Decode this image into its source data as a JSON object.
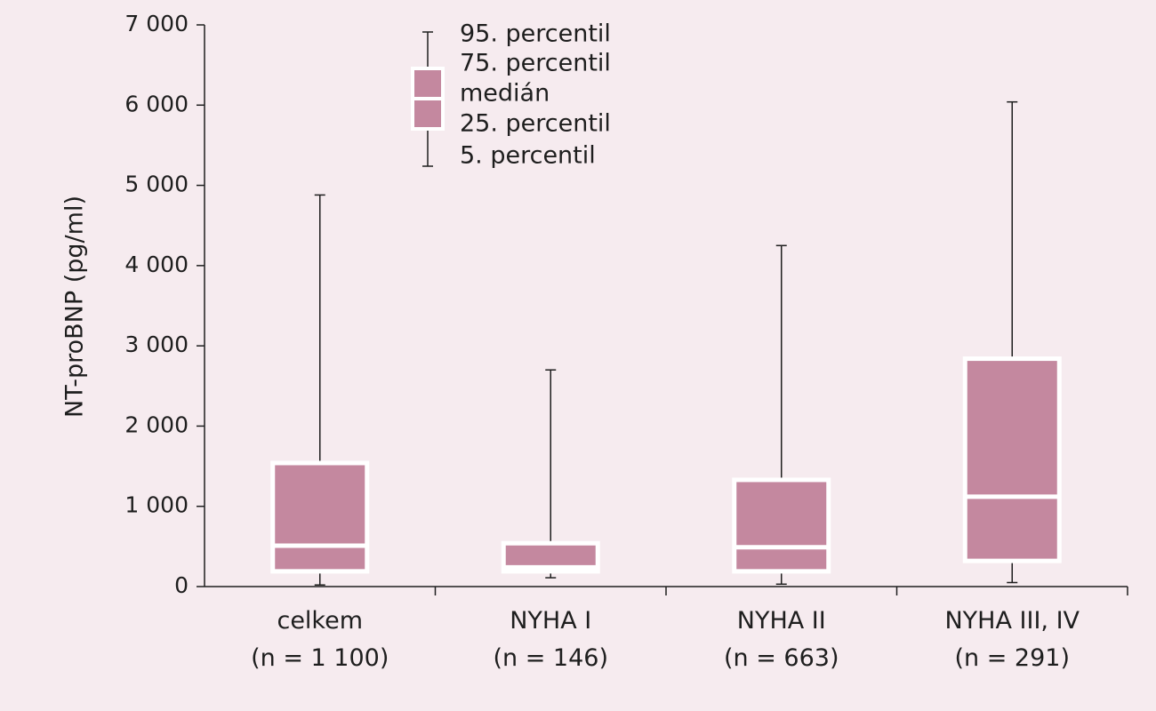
{
  "colors": {
    "box_fill": "#c4889f",
    "box_edge": "#ffffff",
    "median": "#ffffff",
    "whisker": "#1e1e1e",
    "background": "#f6ebef"
  },
  "chart_data": {
    "type": "boxplot",
    "ylabel": "NT-proBNP (pg/ml)",
    "ylim": [
      0,
      7000
    ],
    "yticks": [
      0,
      1000,
      2000,
      3000,
      4000,
      5000,
      6000,
      7000
    ],
    "ytick_labels": [
      "0",
      "1 000",
      "2 000",
      "3 000",
      "4 000",
      "5 000",
      "6 000",
      "7 000"
    ],
    "grid": false,
    "categories": [
      {
        "name": "celkem",
        "n_label": "(n = 1 100)",
        "p5": 20,
        "p25": 190,
        "median": 510,
        "p75": 1540,
        "p95": 4880
      },
      {
        "name": "NYHA I",
        "n_label": "(n = 146)",
        "p5": 110,
        "p25": 190,
        "median": 240,
        "p75": 540,
        "p95": 2700
      },
      {
        "name": "NYHA II",
        "n_label": "(n = 663)",
        "p5": 30,
        "p25": 190,
        "median": 490,
        "p75": 1330,
        "p95": 4250
      },
      {
        "name": "NYHA III, IV",
        "n_label": "(n = 291)",
        "p5": 50,
        "p25": 320,
        "median": 1120,
        "p75": 2840,
        "p95": 6040
      }
    ],
    "legend": {
      "position": "top-center",
      "items": [
        "95. percentil",
        "75. percentil",
        "medián",
        "25. percentil",
        "5. percentil"
      ]
    }
  }
}
